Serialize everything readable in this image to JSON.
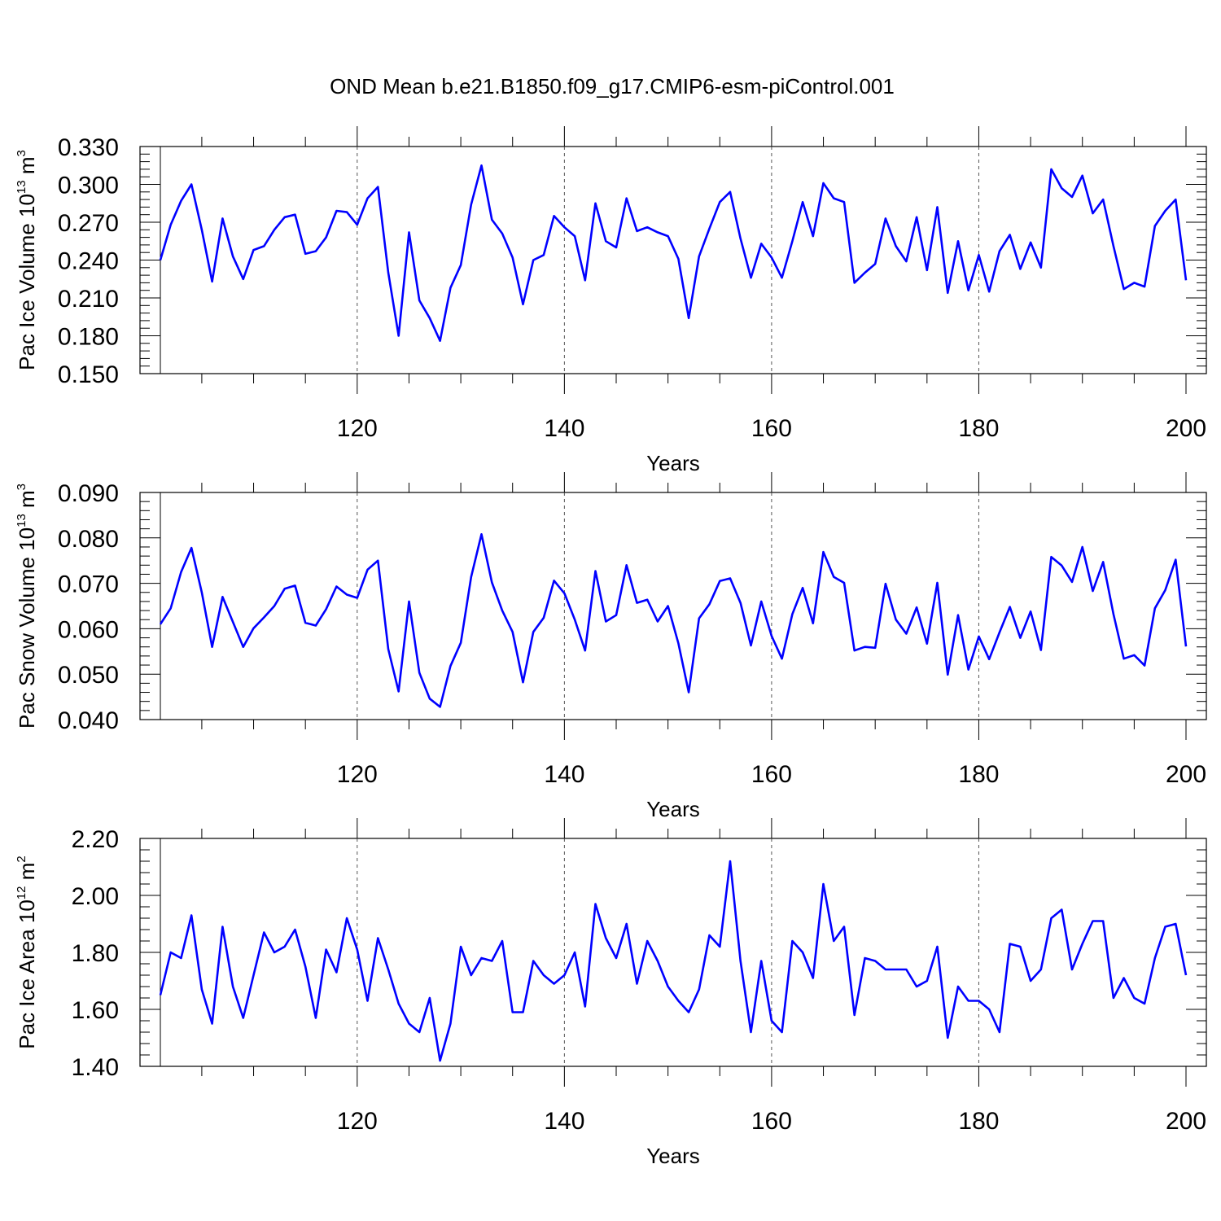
{
  "title": "OND Mean b.e21.B1850.f09_g17.CMIP6-esm-piControl.001",
  "line_color": "#0000ff",
  "chart_data": [
    {
      "type": "line",
      "xlabel": "Years",
      "ylabel_prefix": "Pac Ice Volume 10",
      "ylabel_exponent": "13",
      "ylabel_unit": "m",
      "ylabel_unit_exponent": "3",
      "xlim": [
        101,
        200
      ],
      "ylim": [
        0.15,
        0.33
      ],
      "x_ticks": [
        120,
        140,
        160,
        180,
        200
      ],
      "x_tick_labels": [
        "120",
        "140",
        "160",
        "180",
        "200"
      ],
      "y_ticks": [
        0.15,
        0.18,
        0.21,
        0.24,
        0.27,
        0.3,
        0.33
      ],
      "y_tick_labels": [
        "0.150",
        "0.180",
        "0.210",
        "0.240",
        "0.270",
        "0.300",
        "0.330"
      ],
      "x_start": 101,
      "values": [
        0.24,
        0.268,
        0.287,
        0.3,
        0.264,
        0.223,
        0.273,
        0.243,
        0.225,
        0.248,
        0.251,
        0.264,
        0.274,
        0.276,
        0.245,
        0.247,
        0.258,
        0.279,
        0.278,
        0.268,
        0.289,
        0.298,
        0.23,
        0.18,
        0.262,
        0.208,
        0.194,
        0.176,
        0.218,
        0.236,
        0.284,
        0.315,
        0.272,
        0.261,
        0.242,
        0.205,
        0.24,
        0.244,
        0.275,
        0.266,
        0.259,
        0.224,
        0.285,
        0.255,
        0.25,
        0.289,
        0.263,
        0.266,
        0.262,
        0.259,
        0.241,
        0.194,
        0.243,
        0.265,
        0.286,
        0.294,
        0.257,
        0.226,
        0.253,
        0.242,
        0.226,
        0.255,
        0.286,
        0.259,
        0.301,
        0.289,
        0.286,
        0.222,
        0.23,
        0.237,
        0.273,
        0.251,
        0.239,
        0.274,
        0.232,
        0.282,
        0.214,
        0.255,
        0.216,
        0.244,
        0.215,
        0.247,
        0.26,
        0.233,
        0.254,
        0.234,
        0.312,
        0.297,
        0.29,
        0.307,
        0.277,
        0.288,
        0.251,
        0.217,
        0.222,
        0.219,
        0.267,
        0.279,
        0.288,
        0.224
      ]
    },
    {
      "type": "line",
      "xlabel": "Years",
      "ylabel_prefix": "Pac Snow Volume 10",
      "ylabel_exponent": "13",
      "ylabel_unit": "m",
      "ylabel_unit_exponent": "3",
      "xlim": [
        101,
        200
      ],
      "ylim": [
        0.04,
        0.09
      ],
      "x_ticks": [
        120,
        140,
        160,
        180,
        200
      ],
      "x_tick_labels": [
        "120",
        "140",
        "160",
        "180",
        "200"
      ],
      "y_ticks": [
        0.04,
        0.05,
        0.06,
        0.07,
        0.08,
        0.09
      ],
      "y_tick_labels": [
        "0.040",
        "0.050",
        "0.060",
        "0.070",
        "0.080",
        "0.090"
      ],
      "x_start": 101,
      "values": [
        0.061,
        0.0645,
        0.0725,
        0.0778,
        0.068,
        0.056,
        0.067,
        0.0615,
        0.056,
        0.0601,
        0.0625,
        0.065,
        0.0688,
        0.0695,
        0.0613,
        0.0607,
        0.0643,
        0.0693,
        0.0675,
        0.0668,
        0.073,
        0.075,
        0.0555,
        0.0462,
        0.066,
        0.0503,
        0.0446,
        0.0428,
        0.0518,
        0.0569,
        0.0714,
        0.0808,
        0.0702,
        0.064,
        0.0593,
        0.0482,
        0.0593,
        0.0624,
        0.0706,
        0.0678,
        0.062,
        0.0552,
        0.0727,
        0.0616,
        0.063,
        0.074,
        0.0657,
        0.0664,
        0.0616,
        0.065,
        0.0568,
        0.046,
        0.0623,
        0.0654,
        0.0705,
        0.0711,
        0.0657,
        0.0563,
        0.066,
        0.0584,
        0.0534,
        0.0632,
        0.069,
        0.0612,
        0.0769,
        0.0714,
        0.0701,
        0.0552,
        0.056,
        0.0558,
        0.0699,
        0.062,
        0.0589,
        0.0647,
        0.0567,
        0.0701,
        0.0499,
        0.063,
        0.051,
        0.0583,
        0.0533,
        0.0592,
        0.0648,
        0.058,
        0.0638,
        0.0553,
        0.0758,
        0.0739,
        0.0703,
        0.078,
        0.0683,
        0.0747,
        0.0632,
        0.0534,
        0.0542,
        0.0519,
        0.0645,
        0.0685,
        0.0752,
        0.0561
      ]
    },
    {
      "type": "line",
      "xlabel": "Years",
      "ylabel_prefix": "Pac Ice Area 10",
      "ylabel_exponent": "12",
      "ylabel_unit": "m",
      "ylabel_unit_exponent": "2",
      "xlim": [
        101,
        200
      ],
      "ylim": [
        1.4,
        2.2
      ],
      "x_ticks": [
        120,
        140,
        160,
        180,
        200
      ],
      "x_tick_labels": [
        "120",
        "140",
        "160",
        "180",
        "200"
      ],
      "y_ticks": [
        1.4,
        1.6,
        1.8,
        2.0,
        2.2
      ],
      "y_tick_labels": [
        "1.40",
        "1.60",
        "1.80",
        "2.00",
        "2.20"
      ],
      "x_start": 101,
      "values": [
        1.65,
        1.8,
        1.78,
        1.93,
        1.67,
        1.55,
        1.89,
        1.68,
        1.57,
        1.72,
        1.87,
        1.8,
        1.82,
        1.88,
        1.75,
        1.57,
        1.81,
        1.73,
        1.92,
        1.81,
        1.63,
        1.85,
        1.74,
        1.62,
        1.55,
        1.52,
        1.64,
        1.42,
        1.55,
        1.82,
        1.72,
        1.78,
        1.77,
        1.84,
        1.59,
        1.59,
        1.77,
        1.72,
        1.69,
        1.72,
        1.8,
        1.61,
        1.97,
        1.85,
        1.78,
        1.9,
        1.69,
        1.84,
        1.77,
        1.68,
        1.63,
        1.59,
        1.67,
        1.86,
        1.82,
        2.12,
        1.77,
        1.52,
        1.77,
        1.56,
        1.52,
        1.84,
        1.8,
        1.71,
        2.04,
        1.84,
        1.89,
        1.58,
        1.78,
        1.77,
        1.74,
        1.74,
        1.74,
        1.68,
        1.7,
        1.82,
        1.5,
        1.68,
        1.63,
        1.63,
        1.6,
        1.52,
        1.83,
        1.82,
        1.7,
        1.74,
        1.92,
        1.95,
        1.74,
        1.83,
        1.91,
        1.91,
        1.64,
        1.71,
        1.64,
        1.62,
        1.78,
        1.89,
        1.9,
        1.72
      ]
    }
  ]
}
